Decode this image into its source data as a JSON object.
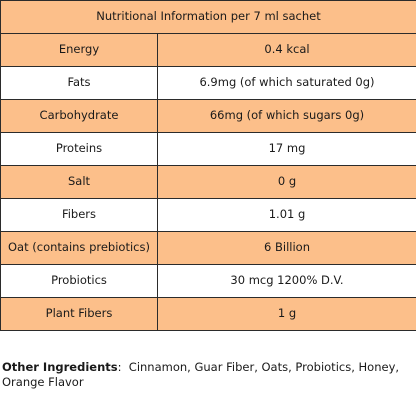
{
  "table": {
    "header": "Nutritional Information per 7 ml sachet",
    "rows": [
      {
        "name": "Energy",
        "value": "0.4 kcal"
      },
      {
        "name": "Fats",
        "value": "6.9mg (of which saturated 0g)"
      },
      {
        "name": "Carbohydrate",
        "value": "66mg (of which sugars 0g)"
      },
      {
        "name": "Proteins",
        "value": "17 mg"
      },
      {
        "name": "Salt",
        "value": "0 g"
      },
      {
        "name": "Fibers",
        "value": "1.01 g"
      },
      {
        "name": "Oat (contains prebiotics)",
        "value": "6 Billion"
      },
      {
        "name": "Probiotics",
        "value": "30 mcg 1200% D.V."
      },
      {
        "name": "Plant Fibers",
        "value": "1 g"
      }
    ]
  },
  "other_ingredients": {
    "label": "Other Ingredients",
    "separator": ":  ",
    "text": "Cinnamon, Guar Fiber, Oats, Probiotics, Honey, Orange Flavor"
  },
  "colors": {
    "shaded_row": "#fcbf8a",
    "plain_row": "#ffffff",
    "border": "#2b2b2b"
  }
}
